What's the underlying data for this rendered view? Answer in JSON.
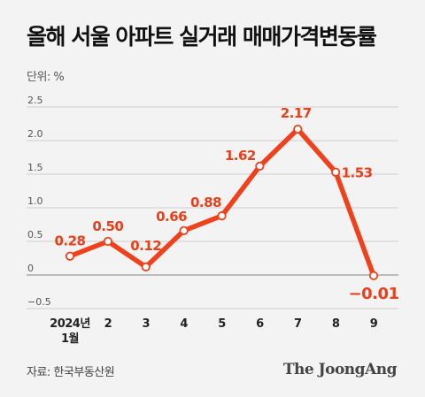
{
  "title": "올해 서울 아파트 실거래 매매가격변동률",
  "unit_label": "단위: %",
  "source": "자료: 한국부동산원",
  "brand": "The JoongAng",
  "colors": {
    "line": "#f0401c",
    "label": "#e8401a",
    "axis_text": "#555555",
    "grid": "#cfcfcf",
    "zero_line": "#9a9a9a"
  },
  "chart_data": {
    "type": "line",
    "title": "올해 서울 아파트 실거래 매매가격변동률",
    "ylabel": "단위: %",
    "xlabel": "",
    "categories": [
      "2024년 1월",
      "2",
      "3",
      "4",
      "5",
      "6",
      "7",
      "8",
      "9"
    ],
    "x_tick_lines": [
      [
        "2024년",
        "1월"
      ],
      [
        "2"
      ],
      [
        "3"
      ],
      [
        "4"
      ],
      [
        "5"
      ],
      [
        "6"
      ],
      [
        "7"
      ],
      [
        "8"
      ],
      [
        "9"
      ]
    ],
    "series": [
      {
        "values": [
          0.28,
          0.5,
          0.12,
          0.66,
          0.88,
          1.62,
          2.17,
          1.53,
          -0.01
        ],
        "labels": [
          "0.28",
          "0.50",
          "0.12",
          "0.66",
          "0.88",
          "1.62",
          "2.17",
          "1.53",
          "−0.01"
        ]
      }
    ],
    "ylim": [
      -0.5,
      2.5
    ],
    "yticks": [
      -0.5,
      0,
      0.5,
      1.0,
      1.5,
      2.0,
      2.5
    ],
    "ytick_labels": [
      "−0.5",
      "0",
      "0.5",
      "1.0",
      "1.5",
      "2.0",
      "2.5"
    ],
    "grid": true
  }
}
